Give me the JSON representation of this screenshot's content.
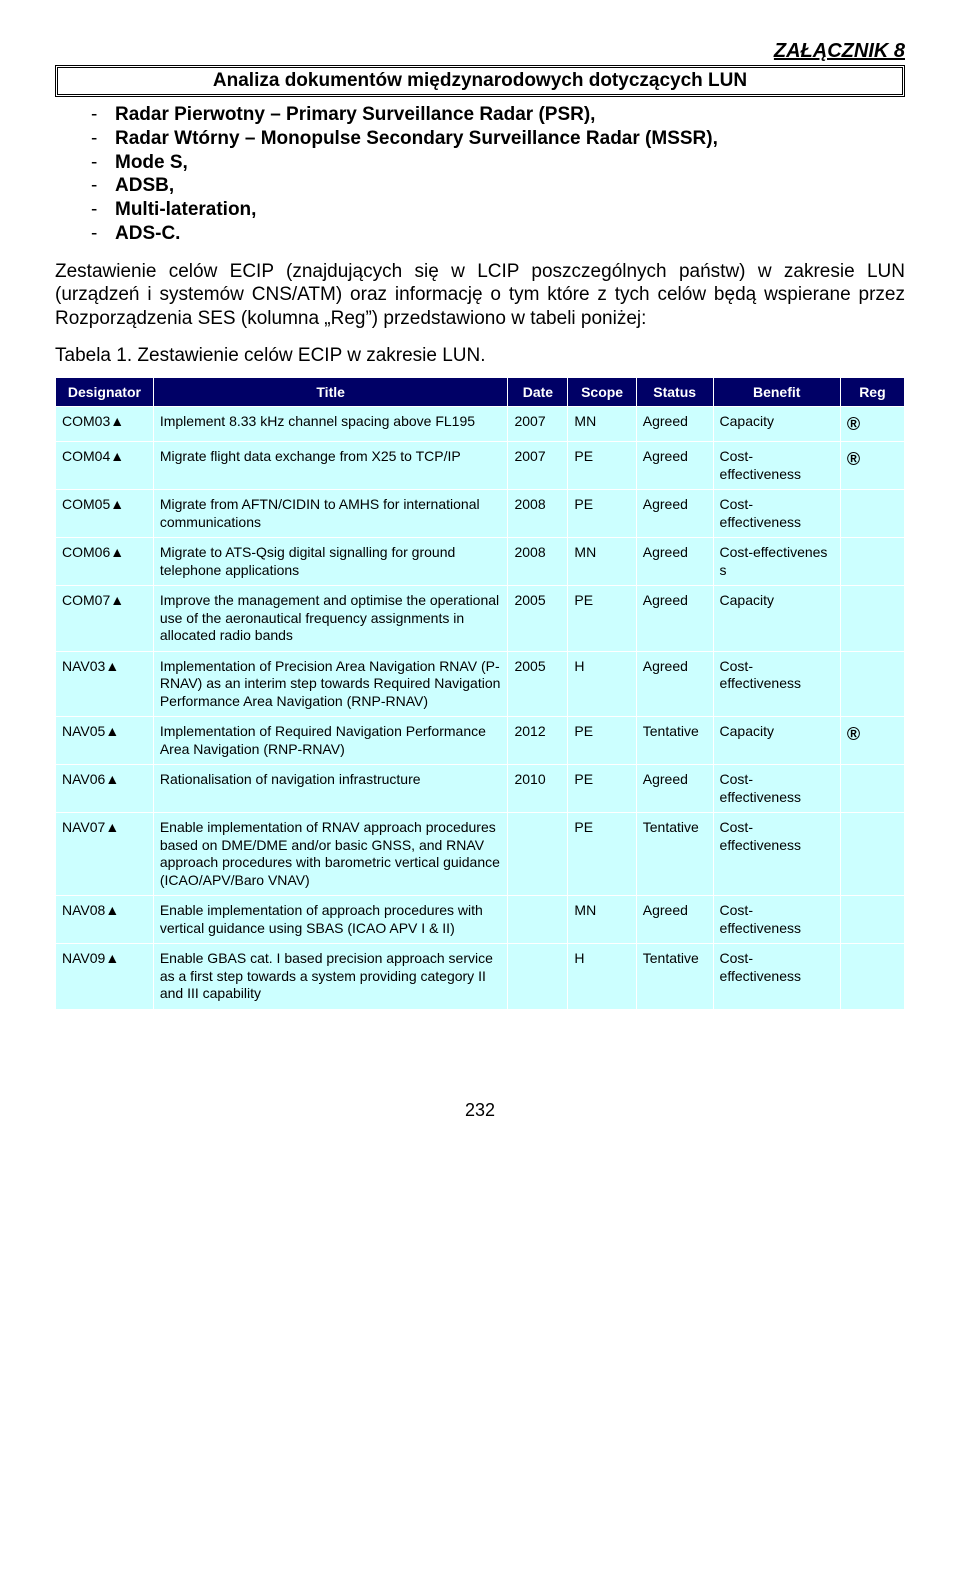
{
  "header": {
    "attachment": "ZAŁĄCZNIK 8",
    "box_title": "Analiza dokumentów międzynarodowych dotyczących LUN"
  },
  "bullets": [
    "Radar Pierwotny – Primary Surveillance Radar (PSR),",
    "Radar Wtórny – Monopulse Secondary Surveillance Radar (MSSR),",
    "Mode S,",
    "ADSB,",
    "Multi-lateration,",
    "ADS-C."
  ],
  "para": "Zestawienie celów ECIP (znajdujących się w LCIP poszczególnych państw) w zakresie LUN (urządzeń i systemów CNS/ATM) oraz informację o tym które z tych celów będą wspierane przez Rozporządzenia SES (kolumna „Reg”) przedstawiono w tabeli poniżej:",
  "table_caption": "Tabela 1. Zestawienie celów ECIP w zakresie LUN.",
  "table": {
    "columns": [
      "Designator",
      "Title",
      "Date",
      "Scope",
      "Status",
      "Benefit",
      "Reg"
    ],
    "rows": [
      {
        "desig": "COM03",
        "title": "Implement 8.33 kHz channel spacing above FL195",
        "date": "2007",
        "scope": "MN",
        "status": "Agreed",
        "benefit": "Capacity",
        "reg": "®"
      },
      {
        "desig": "COM04",
        "title": "Migrate flight data exchange from X25 to TCP/IP",
        "date": "2007",
        "scope": "PE",
        "status": "Agreed",
        "benefit": "Cost-effectiveness",
        "reg": "®"
      },
      {
        "desig": "COM05",
        "title": "Migrate from AFTN/CIDIN to AMHS for international communications",
        "date": "2008",
        "scope": "PE",
        "status": "Agreed",
        "benefit": "Cost-effectiveness",
        "reg": ""
      },
      {
        "desig": "COM06",
        "title": "Migrate to ATS-Qsig digital signalling for ground telephone applications",
        "date": "2008",
        "scope": "MN",
        "status": "Agreed",
        "benefit": "Cost-effectivenes\ns",
        "reg": ""
      },
      {
        "desig": "COM07",
        "title": "Improve the management and optimise the operational use of the aeronautical frequency assignments in allocated radio bands",
        "date": "2005",
        "scope": "PE",
        "status": "Agreed",
        "benefit": "Capacity",
        "reg": ""
      },
      {
        "desig": "NAV03",
        "title": "Implementation of Precision Area Navigation RNAV (P-RNAV) as an interim step towards Required Navigation Performance Area Navigation (RNP-RNAV)",
        "date": "2005",
        "scope": "H",
        "status": "Agreed",
        "benefit": "Cost-effectiveness",
        "reg": ""
      },
      {
        "desig": "NAV05",
        "title": "Implementation of Required Navigation Performance Area Navigation (RNP-RNAV)",
        "date": "2012",
        "scope": "PE",
        "status": "Tentative",
        "benefit": "Capacity",
        "reg": "®"
      },
      {
        "desig": "NAV06",
        "title": "Rationalisation of navigation infrastructure",
        "date": "2010",
        "scope": "PE",
        "status": "Agreed",
        "benefit": "Cost-effectiveness",
        "reg": ""
      },
      {
        "desig": "NAV07",
        "title": "Enable implementation of RNAV approach procedures based on DME/DME and/or basic GNSS, and RNAV approach procedures with barometric vertical guidance (ICAO/APV/Baro VNAV)",
        "date": "",
        "scope": "PE",
        "status": "Tentative",
        "benefit": "Cost-effectiveness",
        "reg": ""
      },
      {
        "desig": "NAV08",
        "title": "Enable implementation of approach procedures with vertical guidance using SBAS (ICAO APV I & II)",
        "date": "",
        "scope": "MN",
        "status": "Agreed",
        "benefit": "Cost-effectiveness",
        "reg": ""
      },
      {
        "desig": "NAV09",
        "title": "Enable GBAS cat. I based precision approach service as a first step towards a system providing category II and III capability",
        "date": "",
        "scope": "H",
        "status": "Tentative",
        "benefit": "Cost-effectiveness",
        "reg": ""
      }
    ]
  },
  "page_number": "232"
}
